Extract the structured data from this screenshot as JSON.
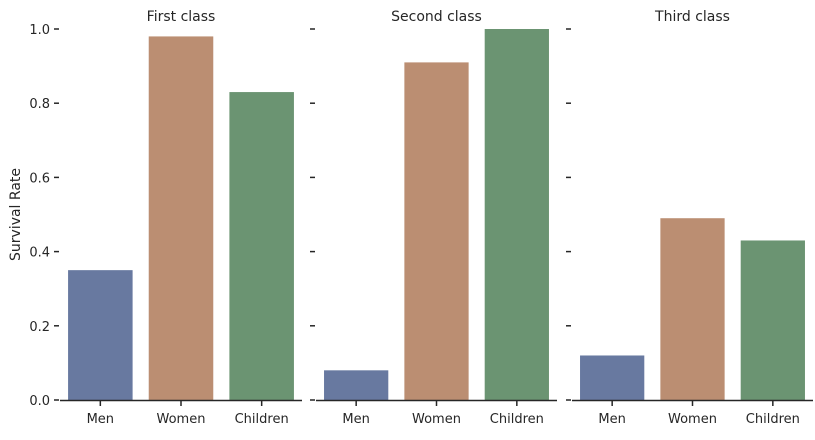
{
  "chart_data": {
    "type": "bar",
    "ylabel": "Survival Rate",
    "ylim": [
      0,
      1.0
    ],
    "yticks": [
      "0.0",
      "0.2",
      "0.4",
      "0.6",
      "0.8",
      "1.0"
    ],
    "categories": [
      "Men",
      "Women",
      "Children"
    ],
    "colors": [
      "#6879a0",
      "#bb8e72",
      "#6b9472"
    ],
    "grid": false,
    "panels": [
      {
        "title": "First class",
        "values": [
          0.35,
          0.98,
          0.83
        ]
      },
      {
        "title": "Second class",
        "values": [
          0.08,
          0.91,
          1.0
        ]
      },
      {
        "title": "Third class",
        "values": [
          0.12,
          0.49,
          0.43
        ]
      }
    ]
  }
}
